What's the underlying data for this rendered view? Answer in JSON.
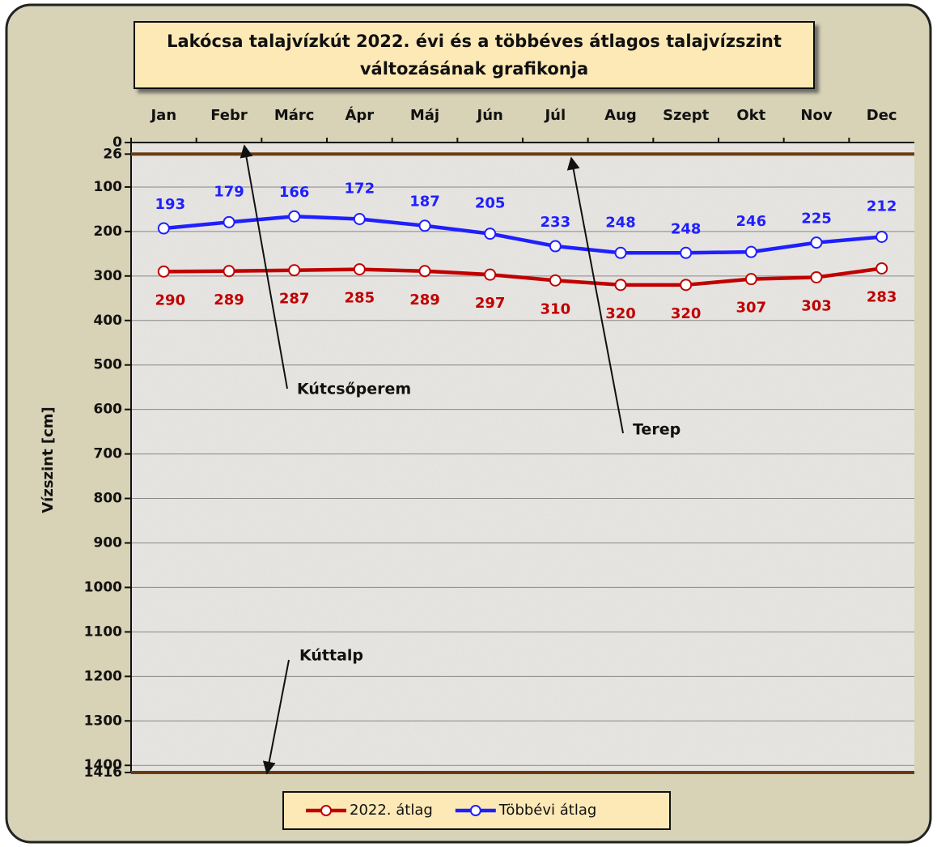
{
  "chart_data": {
    "type": "line",
    "title": "Lakócsa talajvízkút 2022. évi és a többéves átlagos talajvízszint",
    "subtitle": "változásának grafikonja",
    "y_label": "Vízszint [cm]",
    "categories": [
      "Jan",
      "Febr",
      "Márc",
      "Ápr",
      "Máj",
      "Jún",
      "Júl",
      "Aug",
      "Szept",
      "Okt",
      "Nov",
      "Dec"
    ],
    "series": [
      {
        "name": "2022. átlag",
        "color": "#c00000",
        "label_position": "below",
        "values": [
          290,
          289,
          287,
          285,
          289,
          297,
          310,
          320,
          320,
          307,
          303,
          283
        ]
      },
      {
        "name": "Többévi átlag",
        "color": "#1f1fff",
        "label_position": "above",
        "values": [
          193,
          179,
          166,
          172,
          187,
          205,
          233,
          248,
          248,
          246,
          225,
          212
        ]
      }
    ],
    "ylim": [
      0,
      1416
    ],
    "y_inverted": true,
    "yticks": [
      0,
      26,
      100,
      200,
      300,
      400,
      500,
      600,
      700,
      800,
      900,
      1000,
      1100,
      1200,
      1300,
      1400,
      1416
    ],
    "grid": true,
    "hlines": [
      {
        "value": 26,
        "color": "#6b3a10"
      },
      {
        "value": 1416,
        "color": "#6b3a10"
      }
    ],
    "annotations": [
      "Kútcsőperem",
      "Terep",
      "Kúttalp"
    ],
    "legend": "bottom"
  }
}
